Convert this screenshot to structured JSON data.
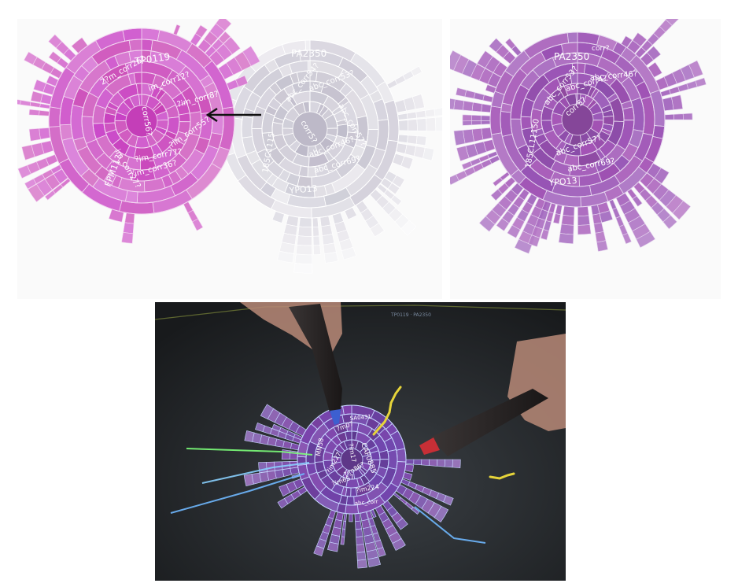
{
  "left_panel": {
    "pink_root": "TP0119",
    "pink_ring_labels": [
      "corr56?",
      "?im_corr8?",
      "im_corr27?",
      "im_corr12?",
      "2?m_corr26?",
      "?im_corr55?",
      "FPM11?",
      "im_corr36?",
      "?im_corr77?"
    ],
    "grey_root": "PA2350",
    "grey_ring_labels": [
      "corr5?",
      "abc_corr54?",
      "abc_corr53?",
      "abc_corr57?",
      "abc_corr46?",
      "abc_corr69?",
      "YPO13",
      "185C1115"
    ],
    "arrow": "left-arrow"
  },
  "right_panel": {
    "root": "PA2350",
    "ring_labels": [
      "corr5?",
      "abc_corr4?",
      "abc_corr53?",
      "abc_corr46?",
      "abc_corr57?",
      "abc_corr69?",
      "YPO13",
      "185CL11150"
    ],
    "top_label": "corr?"
  },
  "photo_panel": {
    "top_text": "TP0119 · PA2350",
    "ring_labels": [
      "CAF0885",
      "?m07",
      "SA0431",
      "?im17",
      "MN58",
      "?im86?",
      "?im657",
      "?im224",
      "?im227",
      "abc_corr"
    ],
    "colors": {
      "blue": "#6fb8ff",
      "green": "#7cff7a",
      "yellow": "#e6d43a",
      "purple": "#7a4ec8",
      "pen": "#2a2626"
    }
  },
  "colors": {
    "magenta": "#c94fc4",
    "grey": "#c9c6d2",
    "arrow": "#111111",
    "background": "#ffffff"
  }
}
